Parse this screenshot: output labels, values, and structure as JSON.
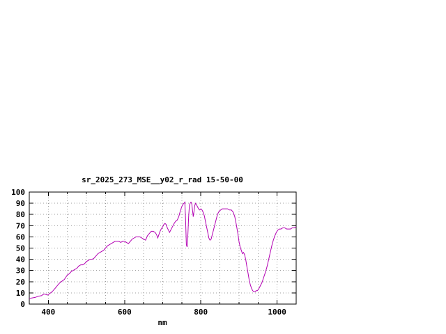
{
  "window": {
    "background": "#ffffff"
  },
  "chart_data": {
    "type": "line",
    "title": "sr_2025_273_MSE__y02_r_rad 15-50-00",
    "xlabel": "nm",
    "ylabel": "",
    "xlim": [
      350,
      1050
    ],
    "ylim": [
      0,
      100
    ],
    "x_ticks": [
      400,
      600,
      800,
      1000
    ],
    "x_minor_step": 50,
    "y_ticks": [
      0,
      10,
      20,
      30,
      40,
      50,
      60,
      70,
      80,
      90,
      100
    ],
    "grid": true,
    "legend": "none",
    "line_color": "#b300b3",
    "axis_color": "#000000",
    "grid_color": "#9c9c9c",
    "points": [
      [
        350,
        5
      ],
      [
        358,
        5.5
      ],
      [
        366,
        6
      ],
      [
        374,
        7
      ],
      [
        382,
        7.5
      ],
      [
        386,
        8.5
      ],
      [
        390,
        9
      ],
      [
        394,
        8.5
      ],
      [
        398,
        8
      ],
      [
        402,
        9
      ],
      [
        406,
        10
      ],
      [
        410,
        11
      ],
      [
        415,
        13
      ],
      [
        420,
        15
      ],
      [
        425,
        17
      ],
      [
        430,
        19
      ],
      [
        434,
        20
      ],
      [
        438,
        21
      ],
      [
        442,
        22
      ],
      [
        446,
        24
      ],
      [
        450,
        26
      ],
      [
        455,
        27
      ],
      [
        460,
        29
      ],
      [
        465,
        30
      ],
      [
        470,
        31
      ],
      [
        475,
        32
      ],
      [
        480,
        34
      ],
      [
        485,
        35
      ],
      [
        490,
        35
      ],
      [
        495,
        36
      ],
      [
        500,
        38
      ],
      [
        505,
        39
      ],
      [
        510,
        40
      ],
      [
        515,
        40
      ],
      [
        520,
        41
      ],
      [
        525,
        43
      ],
      [
        530,
        45
      ],
      [
        535,
        46
      ],
      [
        540,
        47
      ],
      [
        545,
        48
      ],
      [
        550,
        50
      ],
      [
        555,
        52
      ],
      [
        560,
        53
      ],
      [
        565,
        54
      ],
      [
        570,
        55
      ],
      [
        575,
        56
      ],
      [
        580,
        56
      ],
      [
        585,
        56
      ],
      [
        590,
        55
      ],
      [
        595,
        56
      ],
      [
        600,
        56
      ],
      [
        605,
        55
      ],
      [
        610,
        54
      ],
      [
        615,
        56
      ],
      [
        620,
        58
      ],
      [
        625,
        59
      ],
      [
        630,
        60
      ],
      [
        635,
        60
      ],
      [
        640,
        60
      ],
      [
        645,
        59
      ],
      [
        650,
        58
      ],
      [
        655,
        57
      ],
      [
        660,
        61
      ],
      [
        665,
        63
      ],
      [
        670,
        65
      ],
      [
        675,
        65
      ],
      [
        680,
        64
      ],
      [
        684,
        62
      ],
      [
        687,
        59
      ],
      [
        690,
        62
      ],
      [
        693,
        65
      ],
      [
        696,
        67
      ],
      [
        700,
        69
      ],
      [
        703,
        71
      ],
      [
        706,
        72
      ],
      [
        709,
        71
      ],
      [
        712,
        68
      ],
      [
        715,
        66
      ],
      [
        718,
        64
      ],
      [
        721,
        66
      ],
      [
        724,
        68
      ],
      [
        727,
        70
      ],
      [
        730,
        72
      ],
      [
        734,
        74
      ],
      [
        738,
        75
      ],
      [
        742,
        78
      ],
      [
        746,
        83
      ],
      [
        750,
        87
      ],
      [
        753,
        89
      ],
      [
        756,
        90
      ],
      [
        758,
        91
      ],
      [
        760,
        76
      ],
      [
        762,
        53
      ],
      [
        764,
        51
      ],
      [
        766,
        62
      ],
      [
        768,
        78
      ],
      [
        770,
        88
      ],
      [
        772,
        90
      ],
      [
        774,
        91
      ],
      [
        776,
        90
      ],
      [
        778,
        84
      ],
      [
        780,
        78
      ],
      [
        782,
        83
      ],
      [
        784,
        88
      ],
      [
        786,
        90
      ],
      [
        788,
        89
      ],
      [
        791,
        87
      ],
      [
        794,
        85
      ],
      [
        797,
        84
      ],
      [
        800,
        85
      ],
      [
        803,
        84
      ],
      [
        806,
        82
      ],
      [
        809,
        79
      ],
      [
        812,
        74
      ],
      [
        815,
        69
      ],
      [
        818,
        64
      ],
      [
        821,
        59
      ],
      [
        824,
        57
      ],
      [
        827,
        58
      ],
      [
        830,
        62
      ],
      [
        833,
        66
      ],
      [
        836,
        70
      ],
      [
        839,
        74
      ],
      [
        842,
        78
      ],
      [
        845,
        81
      ],
      [
        848,
        83
      ],
      [
        852,
        84
      ],
      [
        856,
        85
      ],
      [
        860,
        85
      ],
      [
        865,
        85
      ],
      [
        870,
        85
      ],
      [
        875,
        84
      ],
      [
        880,
        84
      ],
      [
        885,
        82
      ],
      [
        889,
        78
      ],
      [
        893,
        71
      ],
      [
        897,
        63
      ],
      [
        900,
        56
      ],
      [
        903,
        51
      ],
      [
        906,
        48
      ],
      [
        909,
        45
      ],
      [
        912,
        46
      ],
      [
        915,
        44
      ],
      [
        918,
        39
      ],
      [
        921,
        33
      ],
      [
        924,
        27
      ],
      [
        927,
        21
      ],
      [
        930,
        17
      ],
      [
        933,
        14
      ],
      [
        936,
        12
      ],
      [
        939,
        11
      ],
      [
        942,
        11
      ],
      [
        945,
        12
      ],
      [
        948,
        12
      ],
      [
        951,
        13
      ],
      [
        954,
        15
      ],
      [
        957,
        17
      ],
      [
        960,
        19
      ],
      [
        963,
        22
      ],
      [
        966,
        25
      ],
      [
        970,
        29
      ],
      [
        974,
        34
      ],
      [
        978,
        40
      ],
      [
        982,
        46
      ],
      [
        986,
        52
      ],
      [
        990,
        57
      ],
      [
        994,
        61
      ],
      [
        998,
        64
      ],
      [
        1002,
        66
      ],
      [
        1006,
        67
      ],
      [
        1010,
        67
      ],
      [
        1015,
        68
      ],
      [
        1020,
        68
      ],
      [
        1025,
        67
      ],
      [
        1030,
        67
      ],
      [
        1035,
        67
      ],
      [
        1040,
        68
      ],
      [
        1045,
        68
      ],
      [
        1050,
        69
      ]
    ]
  }
}
